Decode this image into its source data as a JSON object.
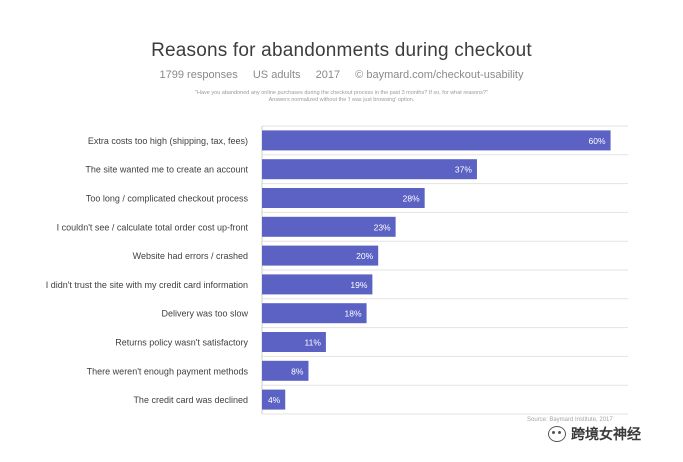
{
  "chart_data": {
    "type": "bar",
    "orientation": "horizontal",
    "title": "Reasons for abandonments during checkout",
    "subtitle": [
      "1799 responses",
      "US adults",
      "2017",
      "© baymard.com/checkout-usability"
    ],
    "question": [
      "\"Have you abandoned any online purchases during the checkout process in the past 3 months? If so, for what reasons?\"",
      "Answers normalized without the 'I was just browsing' option."
    ],
    "categories": [
      "Extra costs too high (shipping, tax, fees)",
      "The site wanted me to create an account",
      "Too long / complicated checkout process",
      "I couldn't see / calculate total order cost up-front",
      "Website had errors / crashed",
      "I didn't trust the site with my credit card information",
      "Delivery was too slow",
      "Returns policy wasn't satisfactory",
      "There weren't enough payment methods",
      "The credit card was declined"
    ],
    "values": [
      60,
      37,
      28,
      23,
      20,
      19,
      18,
      11,
      8,
      4
    ],
    "value_labels": [
      "60%",
      "37%",
      "28%",
      "23%",
      "20%",
      "19%",
      "18%",
      "11%",
      "8%",
      "4%"
    ],
    "xlim": [
      0,
      63
    ],
    "grid": true,
    "bar_color": "#5b62c3",
    "source": "Source: Baymard Institute, 2017"
  },
  "watermark": "跨境女神经"
}
